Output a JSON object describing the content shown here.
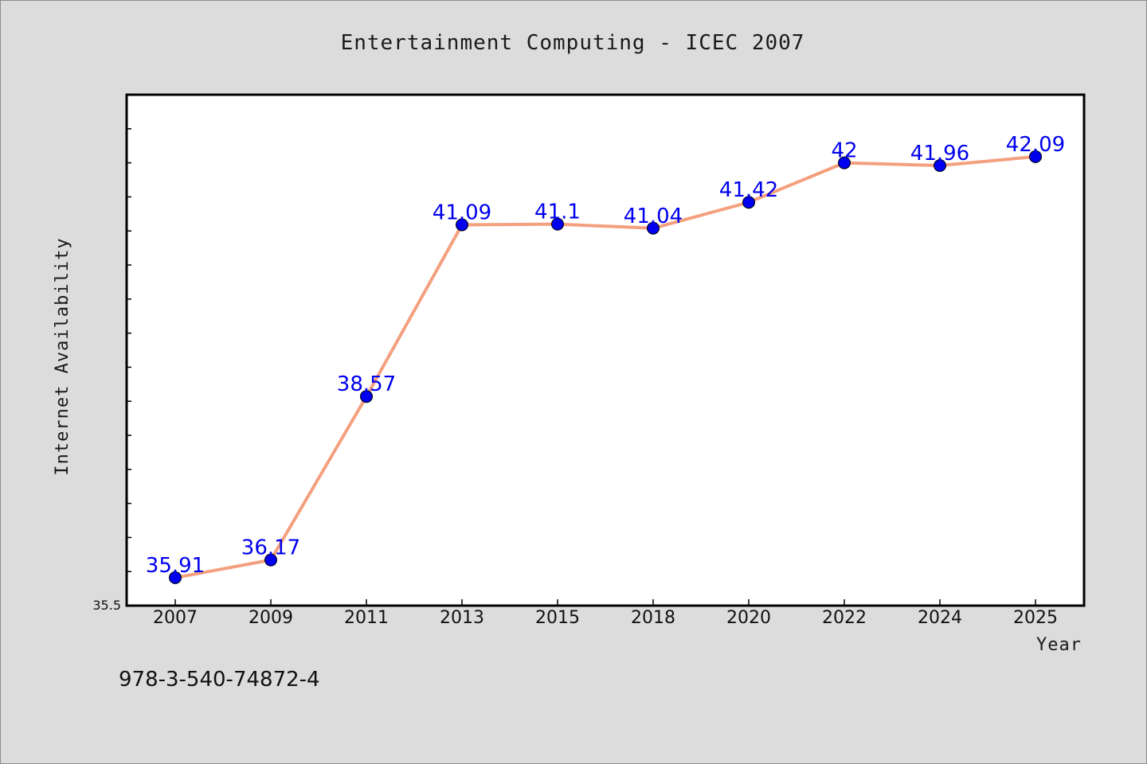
{
  "chart_data": {
    "type": "line",
    "title": "Entertainment Computing - ICEC 2007",
    "xlabel": "Year",
    "ylabel": "Internet Availability",
    "categories": [
      "2007",
      "2009",
      "2011",
      "2013",
      "2015",
      "2018",
      "2020",
      "2022",
      "2024",
      "2025"
    ],
    "series": [
      {
        "values": [
          35.91,
          36.17,
          38.57,
          41.09,
          41.1,
          41.04,
          41.42,
          42,
          41.96,
          42.09
        ]
      }
    ],
    "ylim": [
      35.5,
      43
    ],
    "y_tick_labels": [
      "35.5"
    ],
    "grid": false,
    "legend": "none",
    "colors": {
      "line": "#f4a07e",
      "marker": "#0000ee",
      "data_label": "#0000ee",
      "plot_background": "#ffffff",
      "figure_background": "#dcdcdc"
    }
  },
  "footer_text": "978-3-540-74872-4"
}
